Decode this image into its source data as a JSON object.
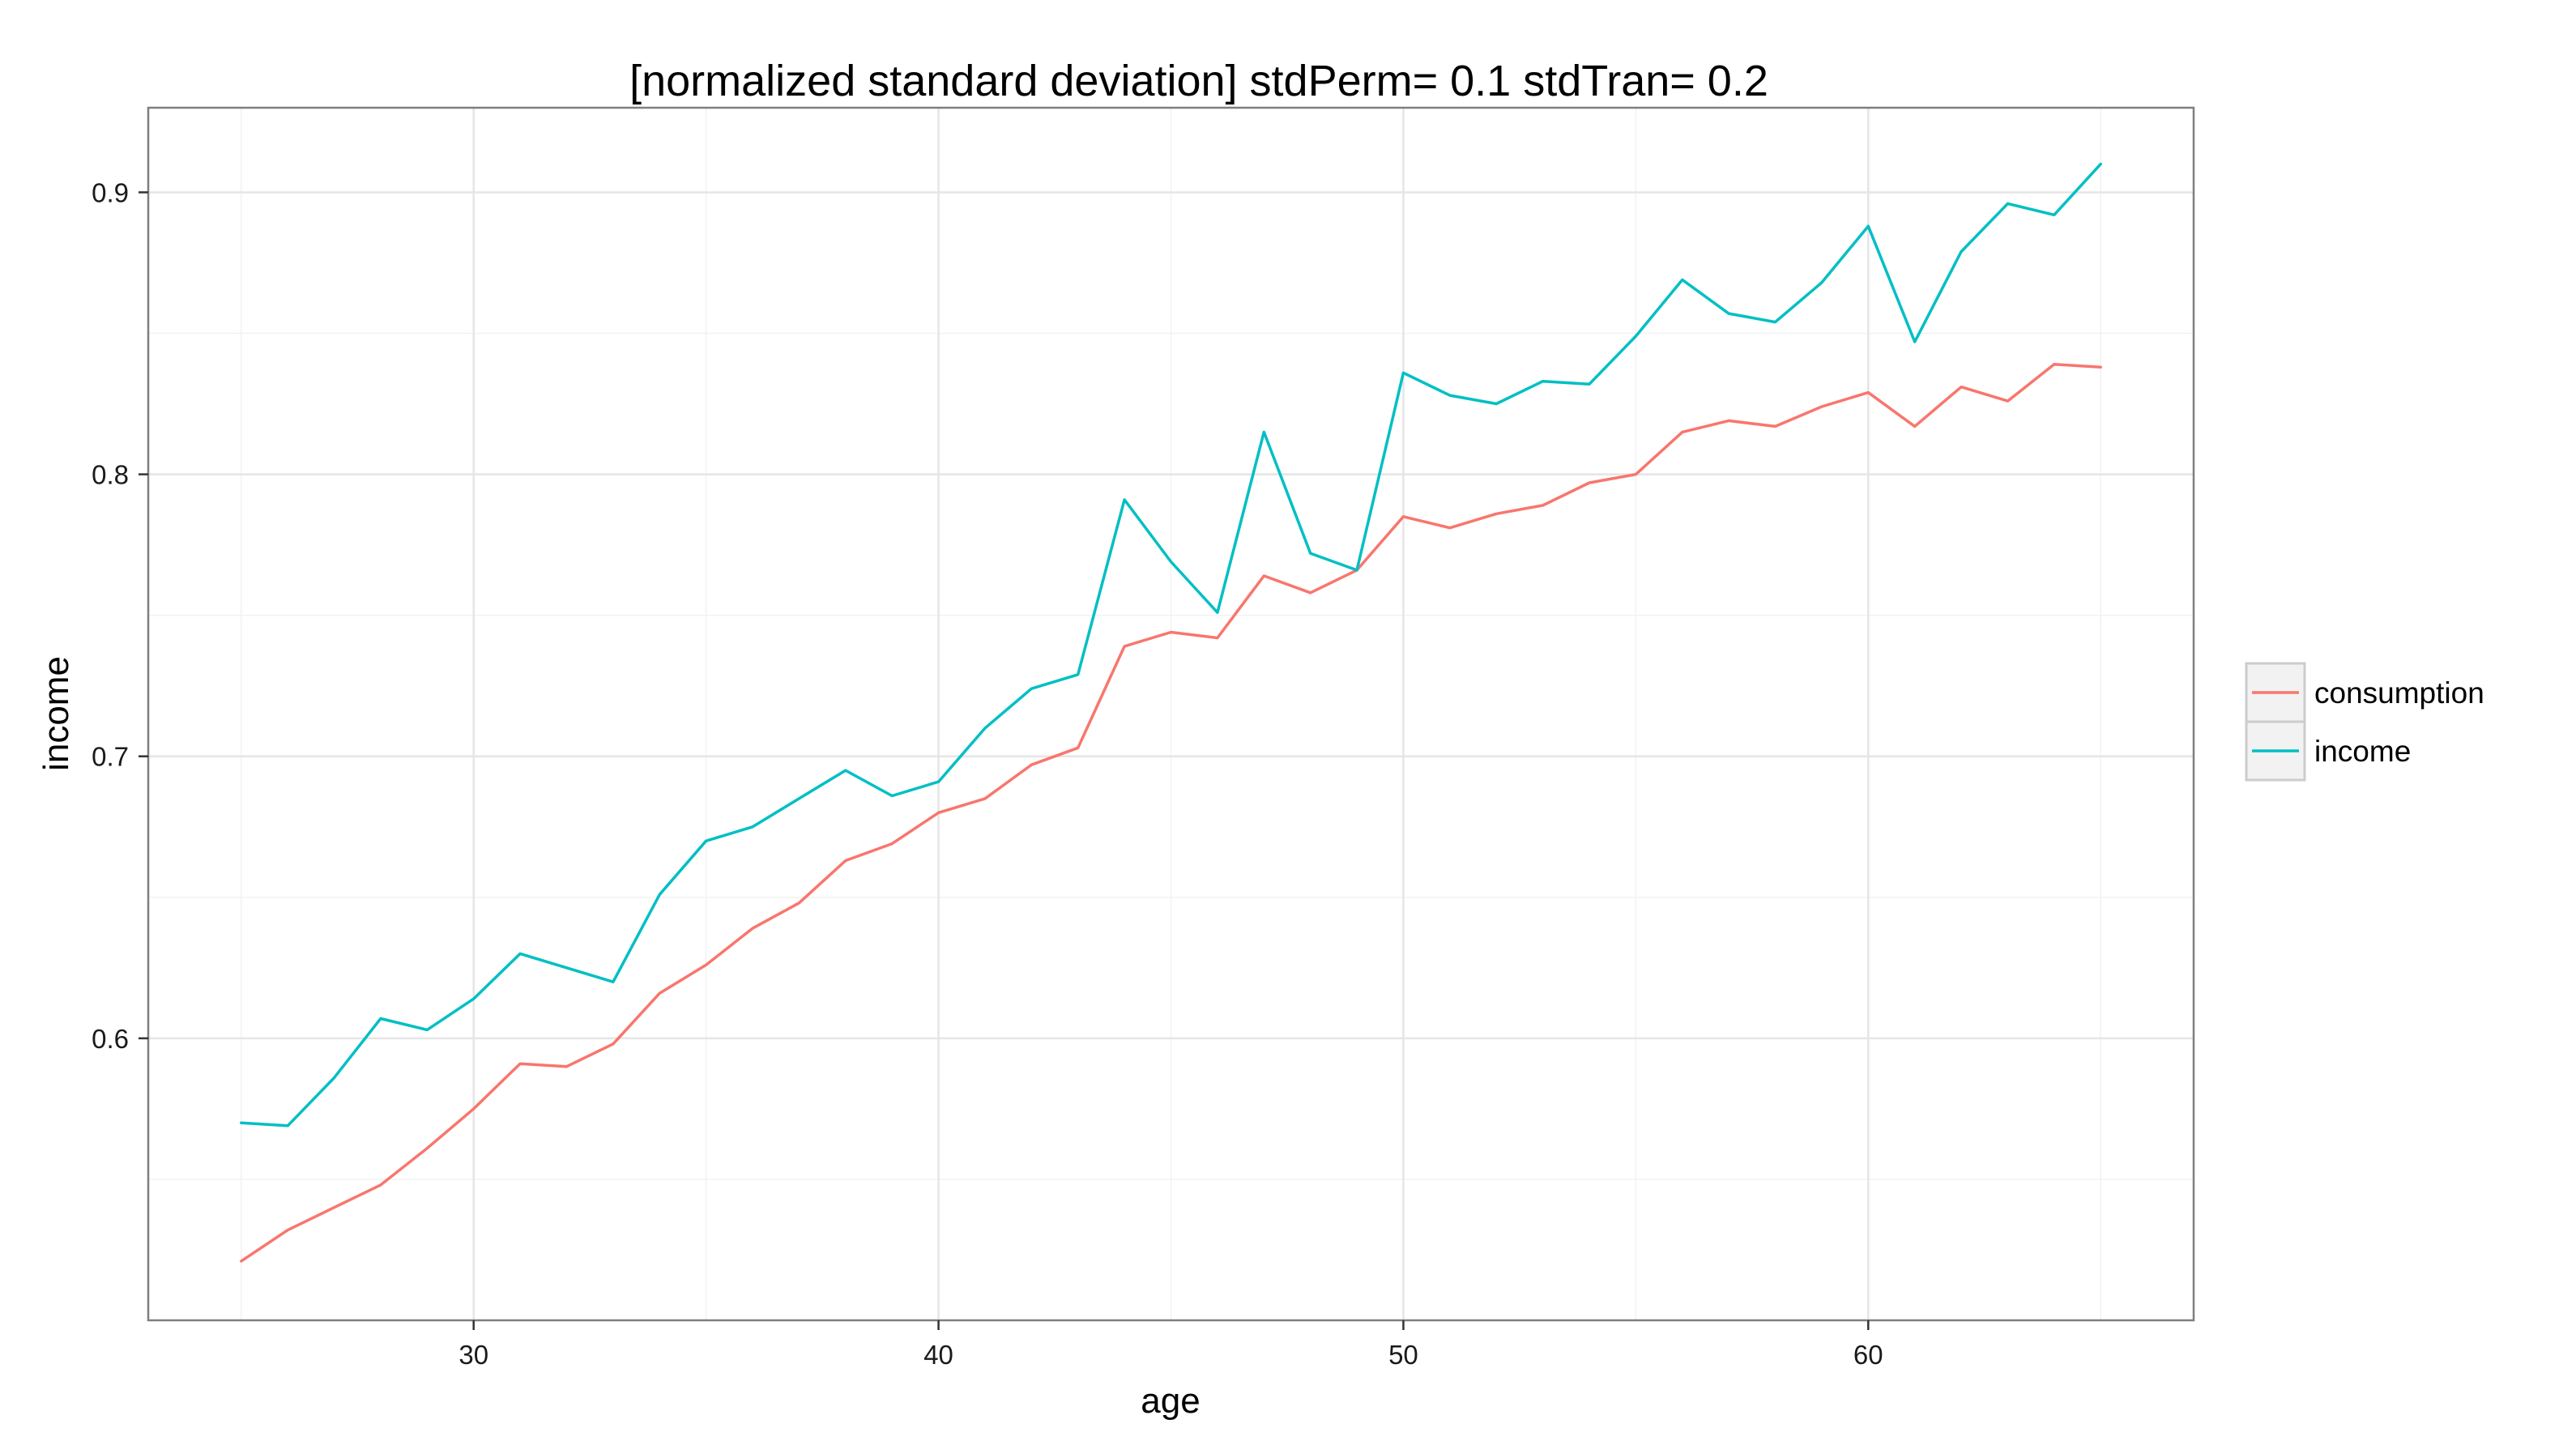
{
  "chart_data": {
    "type": "line",
    "title": "[normalized standard deviation] stdPerm= 0.1 stdTran= 0.2",
    "xlabel": "age",
    "ylabel": "income",
    "xlim": [
      23,
      67
    ],
    "ylim": [
      0.5,
      0.93
    ],
    "x_ticks": [
      30,
      40,
      50,
      60
    ],
    "y_ticks": [
      0.6,
      0.7,
      0.8,
      0.9
    ],
    "x_tick_labels": [
      "30",
      "40",
      "50",
      "60"
    ],
    "y_tick_labels": [
      "0.6",
      "0.7",
      "0.8",
      "0.9"
    ],
    "grid": true,
    "legend_position": "right",
    "x": [
      25,
      26,
      27,
      28,
      29,
      30,
      31,
      32,
      33,
      34,
      35,
      36,
      37,
      38,
      39,
      40,
      41,
      42,
      43,
      44,
      45,
      46,
      47,
      48,
      49,
      50,
      51,
      52,
      53,
      54,
      55,
      56,
      57,
      58,
      59,
      60,
      61,
      62,
      63,
      64,
      65
    ],
    "series": [
      {
        "name": "consumption",
        "color": "#F8766D",
        "values": [
          0.521,
          0.532,
          0.54,
          0.548,
          0.561,
          0.575,
          0.591,
          0.59,
          0.598,
          0.616,
          0.626,
          0.639,
          0.648,
          0.663,
          0.669,
          0.68,
          0.685,
          0.697,
          0.703,
          0.739,
          0.744,
          0.742,
          0.764,
          0.758,
          0.766,
          0.785,
          0.781,
          0.786,
          0.789,
          0.797,
          0.8,
          0.815,
          0.819,
          0.817,
          0.824,
          0.829,
          0.817,
          0.831,
          0.826,
          0.839,
          0.838
        ]
      },
      {
        "name": "income",
        "color": "#00BFC4",
        "values": [
          0.57,
          0.569,
          0.586,
          0.607,
          0.603,
          0.614,
          0.63,
          0.625,
          0.62,
          0.651,
          0.67,
          0.675,
          0.685,
          0.695,
          0.686,
          0.691,
          0.71,
          0.724,
          0.729,
          0.791,
          0.769,
          0.751,
          0.815,
          0.772,
          0.766,
          0.836,
          0.828,
          0.825,
          0.833,
          0.832,
          0.849,
          0.869,
          0.857,
          0.854,
          0.868,
          0.888,
          0.847,
          0.879,
          0.896,
          0.892,
          0.91
        ]
      }
    ]
  }
}
